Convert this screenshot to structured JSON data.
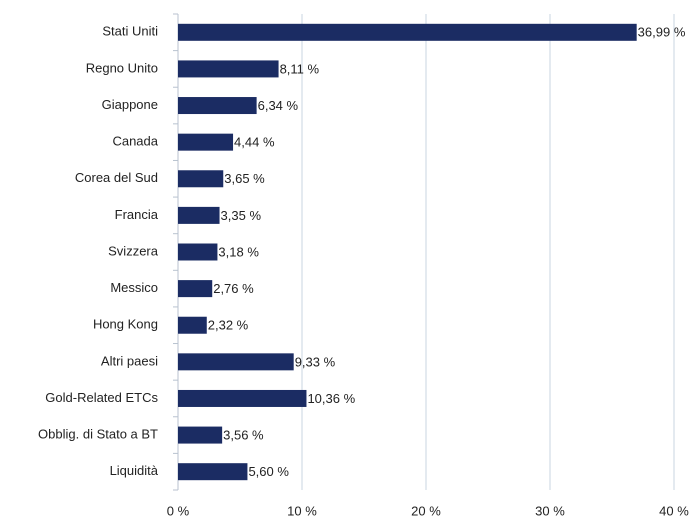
{
  "chart_data": {
    "type": "hbar",
    "categories": [
      "Stati Uniti",
      "Regno Unito",
      "Giappone",
      "Canada",
      "Corea del Sud",
      "Francia",
      "Svizzera",
      "Messico",
      "Hong Kong",
      "Altri paesi",
      "Gold-Related ETCs",
      "Obblig. di Stato a BT",
      "Liquidità"
    ],
    "values": [
      36.99,
      8.11,
      6.34,
      4.44,
      3.65,
      3.35,
      3.18,
      2.76,
      2.32,
      9.33,
      10.36,
      3.56,
      5.6
    ],
    "value_labels": [
      "36,99 %",
      "8,11 %",
      "6,34 %",
      "4,44 %",
      "3,65 %",
      "3,35 %",
      "3,18 %",
      "2,76 %",
      "2,32 %",
      "9,33 %",
      "10,36 %",
      "3,56 %",
      "5,60 %"
    ],
    "color": "#1b2c63",
    "xlim": [
      0,
      40
    ],
    "xticks": [
      {
        "value": 0,
        "label": "0 %"
      },
      {
        "value": 10,
        "label": "10 %"
      },
      {
        "value": 20,
        "label": "20 %"
      },
      {
        "value": 30,
        "label": "30 %"
      },
      {
        "value": 40,
        "label": "40 %"
      }
    ],
    "grid": true
  }
}
